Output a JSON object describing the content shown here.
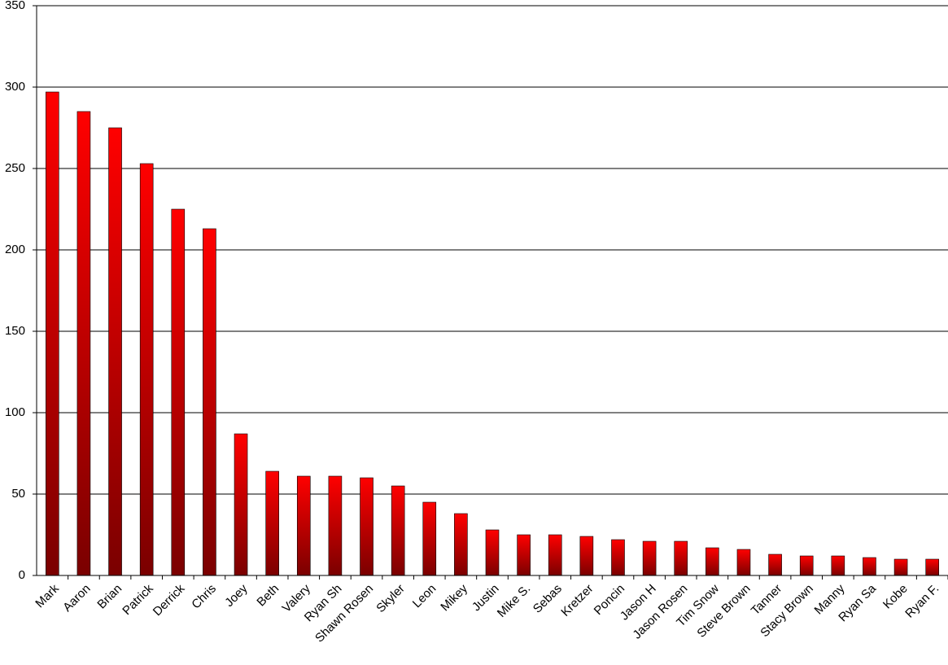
{
  "chart_data": {
    "type": "bar",
    "categories": [
      "Mark",
      "Aaron",
      "Brian",
      "Patrick",
      "Derrick",
      "Chris",
      "Joey",
      "Beth",
      "Valery",
      "Ryan Sh",
      "Shawn Rosen",
      "Skyler",
      "Leon",
      "Mikey",
      "Justin",
      "Mike S.",
      "Sebas",
      "Kretzer",
      "Poncin",
      "Jason H",
      "Jason Rosen",
      "Tim Snow",
      "Steve Brown",
      "Tanner",
      "Stacy Brown",
      "Manny",
      "Ryan Sa",
      "Kobe",
      "Ryan F."
    ],
    "values": [
      297,
      285,
      275,
      253,
      225,
      213,
      87,
      64,
      61,
      61,
      60,
      55,
      45,
      38,
      28,
      25,
      25,
      24,
      22,
      21,
      21,
      17,
      16,
      13,
      12,
      12,
      11,
      10,
      10
    ],
    "color": "#ff0000",
    "ylim": [
      0,
      350
    ],
    "yticks": [
      0,
      50,
      100,
      150,
      200,
      250,
      300,
      350
    ],
    "grid": true
  }
}
